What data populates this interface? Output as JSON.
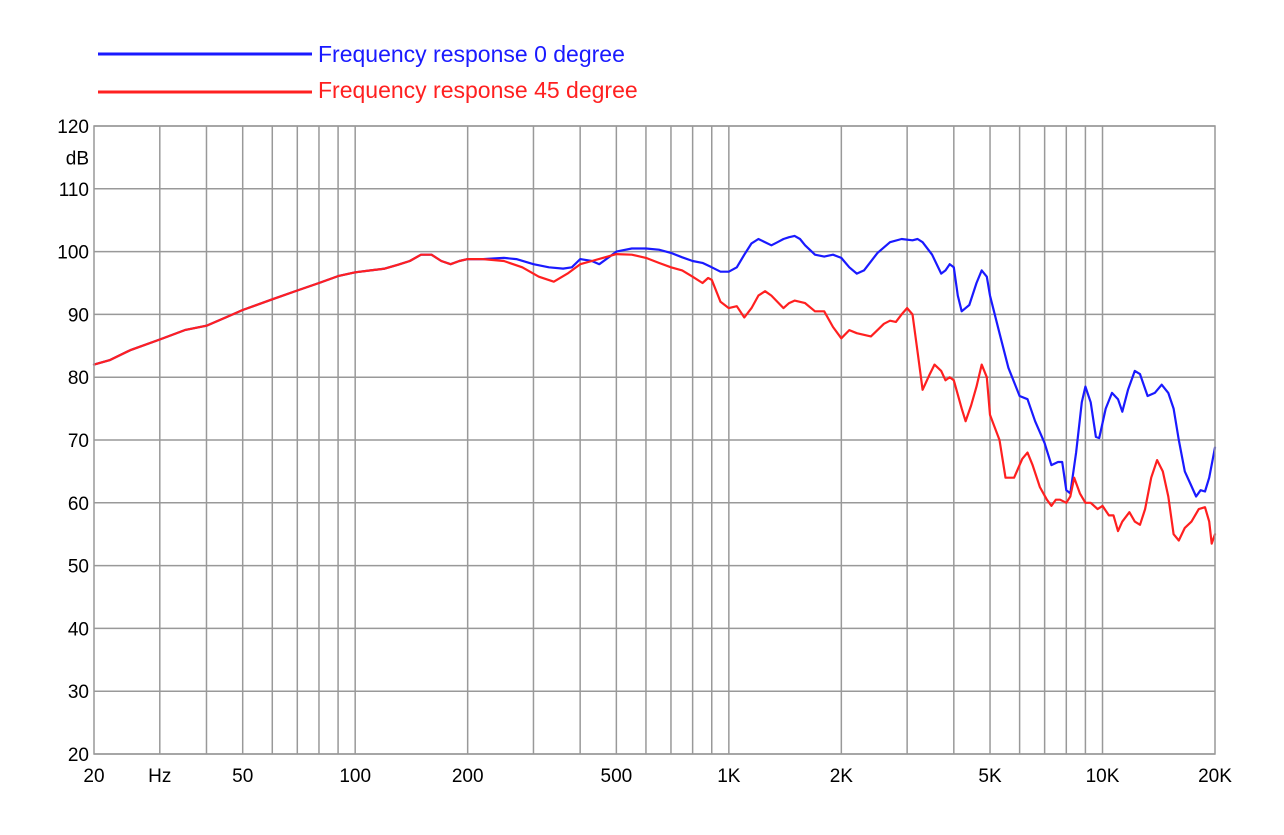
{
  "chart_data": {
    "type": "line",
    "title": "",
    "xlabel": "",
    "ylabel": "",
    "x_scale": "log",
    "xlim": [
      20,
      20000
    ],
    "ylim": [
      20,
      120
    ],
    "grid": true,
    "legend_position": "top-left",
    "x_tick_labels": [
      {
        "value": 20,
        "label": "20"
      },
      {
        "value": 30,
        "label": "Hz"
      },
      {
        "value": 50,
        "label": "50"
      },
      {
        "value": 100,
        "label": "100"
      },
      {
        "value": 200,
        "label": "200"
      },
      {
        "value": 500,
        "label": "500"
      },
      {
        "value": 1000,
        "label": "1K"
      },
      {
        "value": 2000,
        "label": "2K"
      },
      {
        "value": 5000,
        "label": "5K"
      },
      {
        "value": 10000,
        "label": "10K"
      },
      {
        "value": 20000,
        "label": "20K"
      }
    ],
    "x_gridlines": [
      30,
      40,
      50,
      60,
      70,
      80,
      90,
      100,
      200,
      300,
      400,
      500,
      600,
      700,
      800,
      900,
      1000,
      2000,
      3000,
      4000,
      5000,
      6000,
      7000,
      8000,
      9000,
      10000
    ],
    "y_tick_labels": [
      {
        "value": 20,
        "label": "20"
      },
      {
        "value": 30,
        "label": "30"
      },
      {
        "value": 40,
        "label": "40"
      },
      {
        "value": 50,
        "label": "50"
      },
      {
        "value": 60,
        "label": "60"
      },
      {
        "value": 70,
        "label": "70"
      },
      {
        "value": 80,
        "label": "80"
      },
      {
        "value": 90,
        "label": "90"
      },
      {
        "value": 100,
        "label": "100"
      },
      {
        "value": 110,
        "label": "110"
      },
      {
        "value": 120,
        "label": "120"
      }
    ],
    "y_unit_label": "dB",
    "series": [
      {
        "name": "Frequency response 0 degree",
        "color": "#1a1aff",
        "points": [
          [
            20,
            82
          ],
          [
            22,
            82.7
          ],
          [
            25,
            84.3
          ],
          [
            30,
            86
          ],
          [
            35,
            87.5
          ],
          [
            40,
            88.2
          ],
          [
            45,
            89.5
          ],
          [
            50,
            90.7
          ],
          [
            60,
            92.4
          ],
          [
            70,
            93.8
          ],
          [
            80,
            95
          ],
          [
            90,
            96.1
          ],
          [
            100,
            96.7
          ],
          [
            110,
            97
          ],
          [
            120,
            97.3
          ],
          [
            130,
            97.9
          ],
          [
            140,
            98.5
          ],
          [
            150,
            99.5
          ],
          [
            160,
            99.5
          ],
          [
            170,
            98.5
          ],
          [
            180,
            98
          ],
          [
            190,
            98.5
          ],
          [
            200,
            98.8
          ],
          [
            220,
            98.8
          ],
          [
            250,
            99
          ],
          [
            270,
            98.8
          ],
          [
            300,
            98
          ],
          [
            330,
            97.5
          ],
          [
            360,
            97.3
          ],
          [
            380,
            97.5
          ],
          [
            400,
            98.8
          ],
          [
            430,
            98.5
          ],
          [
            450,
            98
          ],
          [
            480,
            99.2
          ],
          [
            500,
            100
          ],
          [
            550,
            100.5
          ],
          [
            600,
            100.5
          ],
          [
            650,
            100.3
          ],
          [
            700,
            99.8
          ],
          [
            750,
            99.1
          ],
          [
            800,
            98.5
          ],
          [
            850,
            98.2
          ],
          [
            900,
            97.5
          ],
          [
            950,
            96.8
          ],
          [
            1000,
            96.8
          ],
          [
            1050,
            97.5
          ],
          [
            1100,
            99.5
          ],
          [
            1150,
            101.3
          ],
          [
            1200,
            102
          ],
          [
            1250,
            101.5
          ],
          [
            1300,
            101
          ],
          [
            1350,
            101.5
          ],
          [
            1400,
            102
          ],
          [
            1450,
            102.3
          ],
          [
            1500,
            102.5
          ],
          [
            1550,
            102
          ],
          [
            1600,
            101
          ],
          [
            1700,
            99.5
          ],
          [
            1800,
            99.2
          ],
          [
            1900,
            99.5
          ],
          [
            2000,
            99
          ],
          [
            2100,
            97.5
          ],
          [
            2200,
            96.5
          ],
          [
            2300,
            97
          ],
          [
            2500,
            99.8
          ],
          [
            2700,
            101.5
          ],
          [
            2900,
            102
          ],
          [
            3100,
            101.8
          ],
          [
            3200,
            102
          ],
          [
            3300,
            101.5
          ],
          [
            3500,
            99.5
          ],
          [
            3700,
            96.5
          ],
          [
            3800,
            97
          ],
          [
            3900,
            98
          ],
          [
            4000,
            97.5
          ],
          [
            4100,
            93
          ],
          [
            4200,
            90.5
          ],
          [
            4400,
            91.5
          ],
          [
            4600,
            95
          ],
          [
            4750,
            97
          ],
          [
            4900,
            96
          ],
          [
            5000,
            93
          ],
          [
            5300,
            87
          ],
          [
            5600,
            81.5
          ],
          [
            6000,
            77
          ],
          [
            6300,
            76.5
          ],
          [
            6600,
            73
          ],
          [
            7000,
            69.5
          ],
          [
            7300,
            66
          ],
          [
            7600,
            66.5
          ],
          [
            7800,
            66.5
          ],
          [
            8000,
            62
          ],
          [
            8200,
            61.5
          ],
          [
            8500,
            68
          ],
          [
            8800,
            76
          ],
          [
            9000,
            78.5
          ],
          [
            9300,
            76
          ],
          [
            9600,
            70.5
          ],
          [
            9800,
            70.3
          ],
          [
            10200,
            75
          ],
          [
            10600,
            77.5
          ],
          [
            11000,
            76.5
          ],
          [
            11300,
            74.5
          ],
          [
            11700,
            78
          ],
          [
            12200,
            81
          ],
          [
            12600,
            80.5
          ],
          [
            13200,
            77
          ],
          [
            13800,
            77.5
          ],
          [
            14400,
            78.8
          ],
          [
            15000,
            77.5
          ],
          [
            15500,
            75
          ],
          [
            16000,
            70
          ],
          [
            16600,
            65
          ],
          [
            17200,
            63
          ],
          [
            17800,
            61
          ],
          [
            18300,
            62
          ],
          [
            18800,
            61.8
          ],
          [
            19300,
            64
          ],
          [
            20000,
            68.8
          ]
        ]
      },
      {
        "name": "Frequency response 45 degree",
        "color": "#ff2020",
        "points": [
          [
            20,
            82
          ],
          [
            22,
            82.7
          ],
          [
            25,
            84.3
          ],
          [
            30,
            86
          ],
          [
            35,
            87.5
          ],
          [
            40,
            88.2
          ],
          [
            45,
            89.5
          ],
          [
            50,
            90.7
          ],
          [
            60,
            92.4
          ],
          [
            70,
            93.8
          ],
          [
            80,
            95
          ],
          [
            90,
            96.1
          ],
          [
            100,
            96.7
          ],
          [
            110,
            97
          ],
          [
            120,
            97.3
          ],
          [
            130,
            97.9
          ],
          [
            140,
            98.5
          ],
          [
            150,
            99.5
          ],
          [
            160,
            99.5
          ],
          [
            170,
            98.5
          ],
          [
            180,
            98
          ],
          [
            190,
            98.5
          ],
          [
            200,
            98.8
          ],
          [
            220,
            98.8
          ],
          [
            250,
            98.5
          ],
          [
            280,
            97.5
          ],
          [
            310,
            96
          ],
          [
            340,
            95.2
          ],
          [
            370,
            96.5
          ],
          [
            400,
            98
          ],
          [
            430,
            98.5
          ],
          [
            460,
            99
          ],
          [
            500,
            99.6
          ],
          [
            550,
            99.5
          ],
          [
            600,
            99
          ],
          [
            650,
            98.2
          ],
          [
            700,
            97.5
          ],
          [
            750,
            97
          ],
          [
            800,
            96
          ],
          [
            850,
            95
          ],
          [
            880,
            95.8
          ],
          [
            900,
            95.5
          ],
          [
            950,
            92
          ],
          [
            1000,
            91
          ],
          [
            1050,
            91.3
          ],
          [
            1100,
            89.5
          ],
          [
            1150,
            91
          ],
          [
            1200,
            93
          ],
          [
            1250,
            93.7
          ],
          [
            1300,
            93
          ],
          [
            1400,
            91
          ],
          [
            1450,
            91.8
          ],
          [
            1500,
            92.2
          ],
          [
            1600,
            91.8
          ],
          [
            1700,
            90.5
          ],
          [
            1800,
            90.5
          ],
          [
            1900,
            88
          ],
          [
            2000,
            86.2
          ],
          [
            2100,
            87.5
          ],
          [
            2200,
            87
          ],
          [
            2400,
            86.5
          ],
          [
            2500,
            87.5
          ],
          [
            2600,
            88.5
          ],
          [
            2700,
            89
          ],
          [
            2800,
            88.8
          ],
          [
            2900,
            90
          ],
          [
            3000,
            91
          ],
          [
            3100,
            90
          ],
          [
            3200,
            84
          ],
          [
            3300,
            78
          ],
          [
            3450,
            80.5
          ],
          [
            3550,
            82
          ],
          [
            3700,
            81
          ],
          [
            3800,
            79.5
          ],
          [
            3900,
            80
          ],
          [
            4000,
            79.5
          ],
          [
            4200,
            75
          ],
          [
            4300,
            73
          ],
          [
            4450,
            75.5
          ],
          [
            4600,
            78.5
          ],
          [
            4750,
            82
          ],
          [
            4900,
            80
          ],
          [
            5000,
            74
          ],
          [
            5300,
            70
          ],
          [
            5500,
            64
          ],
          [
            5800,
            64
          ],
          [
            6100,
            67
          ],
          [
            6300,
            68
          ],
          [
            6500,
            66
          ],
          [
            6800,
            62.5
          ],
          [
            7100,
            60.5
          ],
          [
            7300,
            59.5
          ],
          [
            7500,
            60.5
          ],
          [
            7700,
            60.5
          ],
          [
            8000,
            60
          ],
          [
            8200,
            61
          ],
          [
            8400,
            64
          ],
          [
            8700,
            61.5
          ],
          [
            9000,
            60
          ],
          [
            9300,
            60
          ],
          [
            9700,
            59
          ],
          [
            10000,
            59.5
          ],
          [
            10400,
            58
          ],
          [
            10700,
            58
          ],
          [
            11000,
            55.5
          ],
          [
            11300,
            57
          ],
          [
            11800,
            58.5
          ],
          [
            12200,
            57
          ],
          [
            12600,
            56.5
          ],
          [
            13000,
            59
          ],
          [
            13500,
            64
          ],
          [
            14000,
            66.8
          ],
          [
            14500,
            65
          ],
          [
            15000,
            61
          ],
          [
            15500,
            55
          ],
          [
            16000,
            54
          ],
          [
            16600,
            56
          ],
          [
            17300,
            57
          ],
          [
            18100,
            59
          ],
          [
            18800,
            59.3
          ],
          [
            19300,
            57
          ],
          [
            19600,
            53.5
          ],
          [
            20000,
            55
          ]
        ]
      }
    ]
  }
}
